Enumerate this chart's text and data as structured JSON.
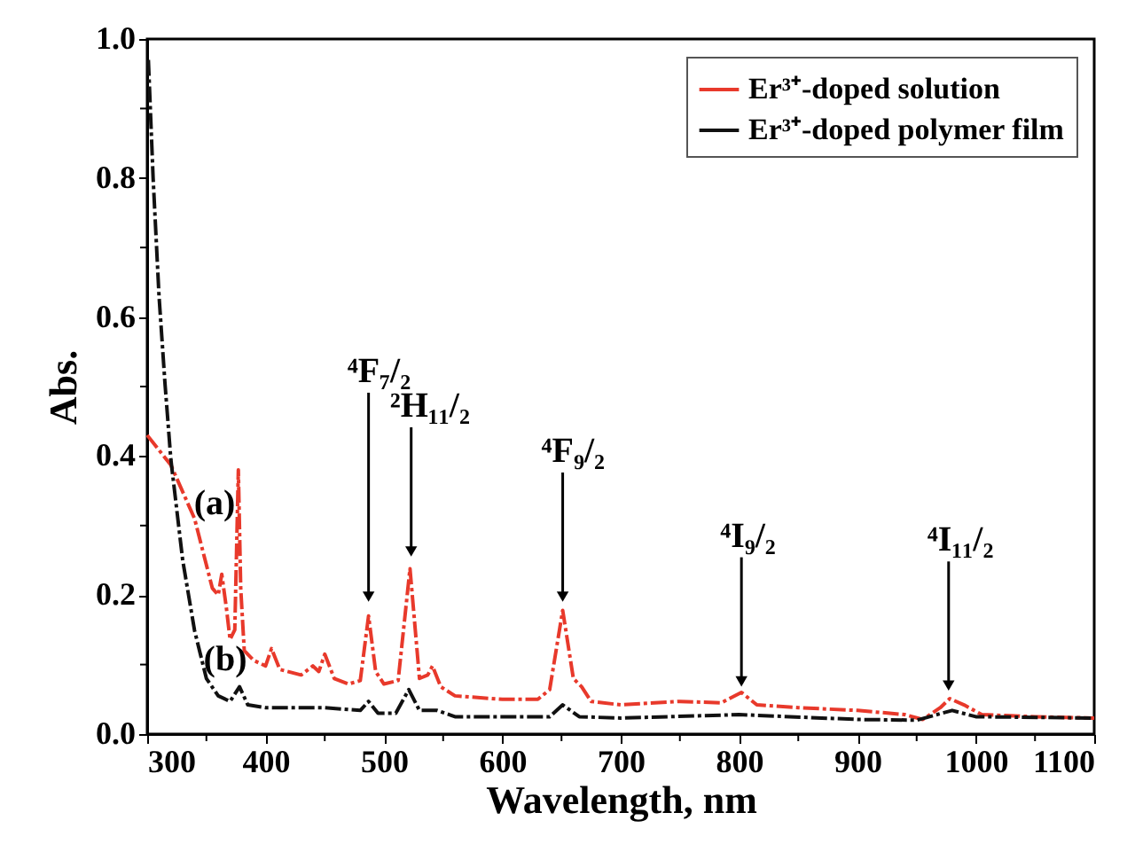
{
  "chart_data": {
    "type": "line",
    "xlabel": "Wavelength, nm",
    "ylabel": "Abs.",
    "xlim": [
      300,
      1100
    ],
    "ylim": [
      0,
      1.0
    ],
    "xticks": [
      300,
      {
        "value": 350,
        "label": null
      },
      400,
      {
        "value": 450,
        "label": null
      },
      500,
      {
        "value": 550,
        "label": null
      },
      600,
      {
        "value": 650,
        "label": null
      },
      700,
      {
        "value": 750,
        "label": null
      },
      800,
      {
        "value": 850,
        "label": null
      },
      900,
      {
        "value": 950,
        "label": null
      },
      1000,
      {
        "value": 1050,
        "label": null
      },
      1100
    ],
    "yticks": [
      {
        "value": 0,
        "label": "0.0"
      },
      {
        "value": 0.1,
        "label": null
      },
      0.2,
      {
        "value": 0.3,
        "label": null
      },
      0.4,
      {
        "value": 0.5,
        "label": null
      },
      0.6,
      {
        "value": 0.7,
        "label": null
      },
      0.8,
      {
        "value": 0.9,
        "label": null
      },
      {
        "value": 1.0,
        "label": "1.0"
      }
    ],
    "grid": false,
    "legend": "top right",
    "series": [
      {
        "name": "Er³⁺-doped solution",
        "color": "#e8392b",
        "line_style": "dashed",
        "x": [
          300,
          320,
          340,
          355,
          360,
          363,
          367,
          370,
          374,
          377,
          379,
          382,
          390,
          400,
          405,
          412,
          430,
          440,
          445,
          450,
          458,
          470,
          480,
          487,
          493,
          500,
          512,
          522,
          530,
          537,
          541,
          548,
          560,
          600,
          630,
          640,
          651,
          660,
          667,
          675,
          700,
          750,
          785,
          802,
          815,
          850,
          900,
          940,
          955,
          970,
          978,
          990,
          1005,
          1050,
          1100
        ],
        "values": [
          0.43,
          0.387,
          0.31,
          0.21,
          0.2,
          0.23,
          0.18,
          0.136,
          0.15,
          0.38,
          0.21,
          0.12,
          0.106,
          0.098,
          0.123,
          0.093,
          0.085,
          0.098,
          0.09,
          0.115,
          0.08,
          0.072,
          0.077,
          0.17,
          0.09,
          0.072,
          0.077,
          0.238,
          0.08,
          0.085,
          0.098,
          0.068,
          0.055,
          0.05,
          0.05,
          0.064,
          0.178,
          0.08,
          0.068,
          0.047,
          0.042,
          0.047,
          0.045,
          0.06,
          0.042,
          0.038,
          0.034,
          0.028,
          0.021,
          0.038,
          0.051,
          0.042,
          0.028,
          0.025,
          0.023
        ]
      },
      {
        "name": "Er³⁺-doped polymer film",
        "color": "#111111",
        "line_style": "dashed",
        "x": [
          301,
          305,
          310,
          315,
          320,
          330,
          340,
          350,
          360,
          370,
          378,
          385,
          400,
          450,
          480,
          487,
          495,
          510,
          521,
          530,
          545,
          560,
          640,
          651,
          665,
          700,
          800,
          900,
          950,
          980,
          1000,
          1100
        ],
        "values": [
          0.97,
          0.8,
          0.63,
          0.505,
          0.395,
          0.25,
          0.149,
          0.08,
          0.055,
          0.047,
          0.068,
          0.042,
          0.038,
          0.038,
          0.034,
          0.047,
          0.03,
          0.03,
          0.064,
          0.034,
          0.034,
          0.025,
          0.025,
          0.042,
          0.025,
          0.023,
          0.028,
          0.021,
          0.02,
          0.034,
          0.025,
          0.023
        ]
      }
    ],
    "annotations": [
      {
        "text": "⁴F₇/₂",
        "x": 487,
        "y": 0.185
      },
      {
        "text": "²H₁₁/₂",
        "x": 523,
        "y": 0.25
      },
      {
        "text": "⁴F₉/₂",
        "x": 651,
        "y": 0.185
      },
      {
        "text": "⁴I₉/₂",
        "x": 802,
        "y": 0.063
      },
      {
        "text": "⁴I₁₁/₂",
        "x": 977,
        "y": 0.057
      },
      "(a)",
      "(b)"
    ]
  }
}
